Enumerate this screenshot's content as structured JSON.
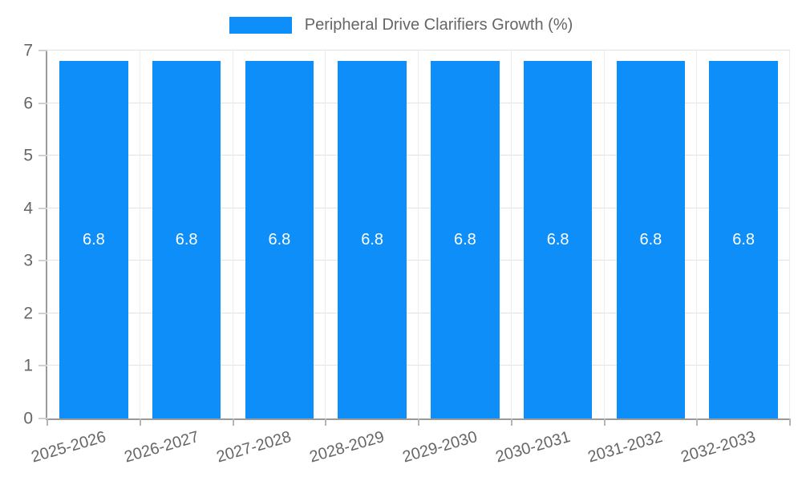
{
  "chart_data": {
    "type": "bar",
    "title": "Peripheral Drive Clarifiers Growth (%)",
    "categories": [
      "2025-2026",
      "2026-2027",
      "2027-2028",
      "2028-2029",
      "2029-2030",
      "2030-2031",
      "2031-2032",
      "2032-2033"
    ],
    "values": [
      6.8,
      6.8,
      6.8,
      6.8,
      6.8,
      6.8,
      6.8,
      6.8
    ],
    "bar_labels": [
      "6.8",
      "6.8",
      "6.8",
      "6.8",
      "6.8",
      "6.8",
      "6.8",
      "6.8"
    ],
    "xlabel": "",
    "ylabel": "",
    "ylim": [
      0,
      7
    ],
    "yticks": [
      0,
      1,
      2,
      3,
      4,
      5,
      6,
      7
    ],
    "grid": true,
    "legend_position": "top"
  },
  "colors": {
    "bar": "#0d8ef8",
    "bar_label_text": "#ffffff",
    "axis_text": "#666666",
    "legend_text": "#666666",
    "grid_line": "#e3e3e3",
    "axis_line": "#9a9a9a"
  }
}
